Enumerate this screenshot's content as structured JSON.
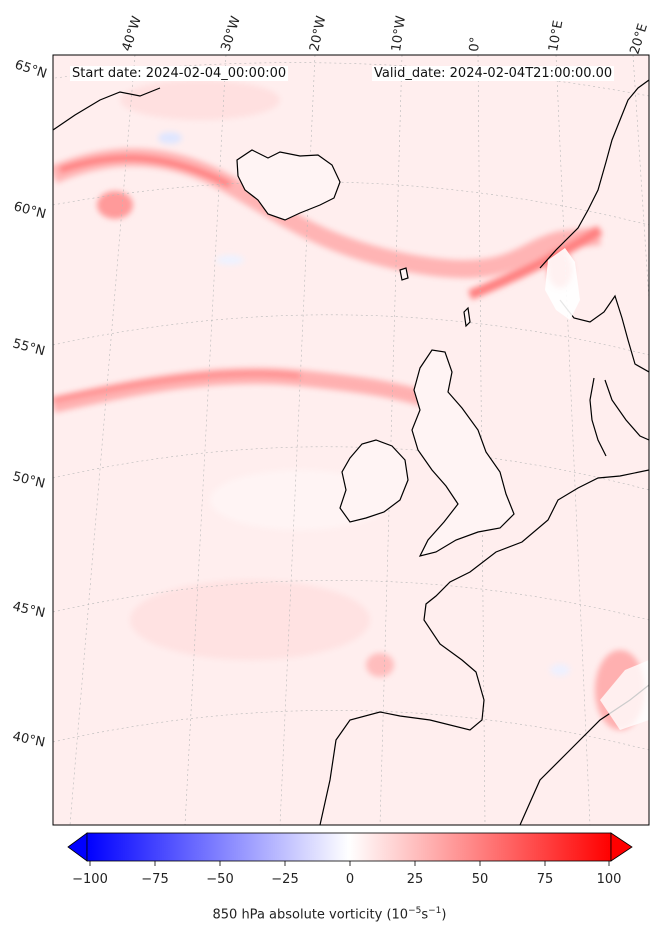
{
  "header": {
    "start_date": "Start date: 2024-02-04_00:00:00",
    "valid_date": "Valid_date: 2024-02-04T21:00:00.00"
  },
  "map": {
    "lon_labels": [
      "40°W",
      "30°W",
      "20°W",
      "10°W",
      "0°",
      "10°E",
      "20°E"
    ],
    "lat_labels": [
      "65°N",
      "60°N",
      "55°N",
      "50°N",
      "45°N",
      "40°N"
    ],
    "coastline_color": "#000000",
    "background_color": "#fff0f0"
  },
  "colorbar": {
    "ticks": [
      "−100",
      "−75",
      "−50",
      "−25",
      "0",
      "25",
      "50",
      "75",
      "100"
    ],
    "min": -100,
    "max": 100,
    "label_main": "850 hPa absolute vorticity (10",
    "label_exp1": "−5",
    "label_mid": "s",
    "label_exp2": "−1",
    "label_end": ")",
    "colors": {
      "low": "#0000ff",
      "mid": "#ffffff",
      "high": "#ff0000"
    }
  }
}
